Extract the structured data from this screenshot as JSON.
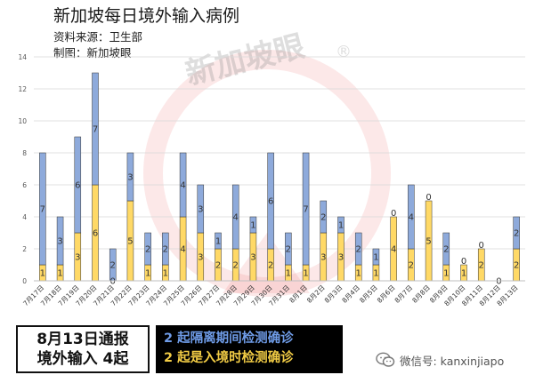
{
  "header": {
    "title": "新加坡每日境外输入病例",
    "source": "资料来源：卫生部",
    "maker": "制图：新加坡眼"
  },
  "watermark_text": "新加坡眼",
  "watermark_mark": "®",
  "colors": {
    "series_top": "#8eaadb",
    "series_bottom": "#ffd966",
    "bar_outline": "#333333",
    "grid": "#d9d9d9",
    "watermark_red": "#e74c4c"
  },
  "chart_data": {
    "type": "bar",
    "stacked": true,
    "categories": [
      "7月17日",
      "7月18日",
      "7月19日",
      "7月20日",
      "7月21日",
      "7月22日",
      "7月23日",
      "7月24日",
      "7月25日",
      "7月26日",
      "7月27日",
      "7月28日",
      "7月29日",
      "7月30日",
      "7月31日",
      "8月1日",
      "8月2日",
      "8月3日",
      "8月4日",
      "8月5日",
      "8月6日",
      "8月7日",
      "8月8日",
      "8月9日",
      "8月10日",
      "8月11日",
      "8月12日",
      "8月13日"
    ],
    "series": [
      {
        "values": [
          1,
          1,
          3,
          6,
          0,
          5,
          1,
          1,
          4,
          3,
          2,
          2,
          3,
          2,
          1,
          1,
          3,
          3,
          1,
          1,
          4,
          2,
          5,
          1,
          1,
          2,
          0,
          2
        ]
      },
      {
        "values": [
          7,
          3,
          6,
          7,
          2,
          3,
          2,
          2,
          4,
          3,
          1,
          4,
          1,
          6,
          2,
          7,
          2,
          1,
          2,
          1,
          0,
          4,
          0,
          2,
          0,
          0,
          0,
          2
        ]
      }
    ],
    "data_labels": [
      [
        "1",
        "1",
        "3",
        "6",
        "0",
        "5",
        "1",
        "1",
        "4",
        "3",
        "2",
        "2",
        "3",
        "2",
        "1",
        "1",
        "3",
        "3",
        "1",
        "1",
        "4",
        "2",
        "5",
        "1",
        "1",
        "2",
        "0",
        "2"
      ],
      [
        "7",
        "3",
        "6",
        "7",
        "2",
        "3",
        "2",
        "2",
        "4",
        "3",
        "1",
        "4",
        "1",
        "6",
        "2",
        "7",
        "2",
        "1",
        "2",
        "1",
        "0",
        "4",
        "0",
        "2",
        "0",
        "0",
        "0",
        "2"
      ]
    ],
    "ylim": [
      0,
      14
    ],
    "yticks": [
      "0",
      "2",
      "4",
      "6",
      "8",
      "10",
      "12",
      "14"
    ],
    "grid": true
  },
  "notice": {
    "line1": "8月13日通报",
    "line2": "境外输入 4起"
  },
  "detail": {
    "line1": "2 起隔离期间检测确诊",
    "line2": "2 起是入境时检测确诊"
  },
  "wechat": {
    "label": "微信号: kanxinjiapo",
    "icon": "wechat-icon"
  }
}
